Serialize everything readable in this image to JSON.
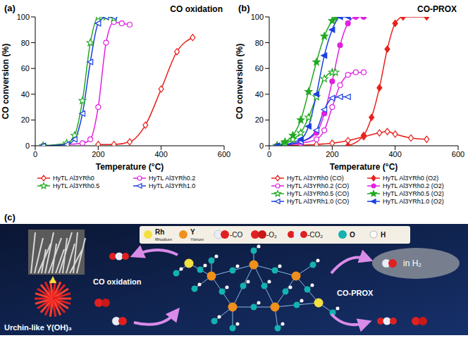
{
  "chart_data": [
    {
      "type": "line",
      "panel_label": "(a)",
      "title": "CO oxidation",
      "x_label": "Temperature (°C)",
      "y_label": "CO conversion (%)",
      "xlim": [
        0,
        600
      ],
      "xticks": [
        0,
        200,
        400,
        600
      ],
      "ylim": [
        0,
        100
      ],
      "yticks": [
        0,
        20,
        40,
        60,
        80,
        100
      ],
      "grid": false,
      "legend": "bottom",
      "series": [
        {
          "name": "HyTL Al3YRh0",
          "color": "#e8201c",
          "marker": "open_diamond",
          "x": [
            200,
            250,
            300,
            350,
            400,
            450,
            500
          ],
          "values": [
            1,
            1,
            3,
            16,
            44,
            73,
            84
          ]
        },
        {
          "name": "HyTL Al3YRh0.2",
          "color": "#e020e0",
          "marker": "open_circle",
          "x": [
            25,
            100,
            150,
            175,
            200,
            225,
            250,
            275,
            300
          ],
          "values": [
            0,
            1,
            2,
            5,
            30,
            80,
            96,
            95,
            94
          ]
        },
        {
          "name": "HyTL Al3YRh0.5",
          "color": "#22a822",
          "marker": "open_star",
          "x": [
            25,
            100,
            125,
            150,
            175,
            200,
            225,
            250
          ],
          "values": [
            0,
            2,
            8,
            35,
            80,
            100,
            100,
            99
          ]
        },
        {
          "name": "HyTL Al3YRh1.0",
          "color": "#1a3fe0",
          "marker": "open_triangle_left",
          "x": [
            25,
            100,
            125,
            150,
            175,
            200,
            225,
            250
          ],
          "values": [
            0,
            1,
            5,
            25,
            65,
            95,
            100,
            100
          ]
        }
      ]
    },
    {
      "type": "line",
      "panel_label": "(b)",
      "title": "CO-PROX",
      "x_label": "Temperature (°C)",
      "y_label": "CO conversion (%)",
      "xlim": [
        0,
        600
      ],
      "xticks": [
        0,
        200,
        400,
        600
      ],
      "ylim": [
        0,
        100
      ],
      "yticks": [
        0,
        20,
        40,
        60,
        80,
        100
      ],
      "grid": false,
      "legend": "bottom",
      "series": [
        {
          "name": "HyTL Al3YRh0 (CO)",
          "color": "#e8201c",
          "marker": "open_diamond",
          "x": [
            25,
            100,
            150,
            200,
            250,
            300,
            350,
            375,
            400,
            450,
            500
          ],
          "values": [
            0,
            0.5,
            1,
            2,
            4,
            7,
            10,
            11,
            9,
            6,
            5
          ]
        },
        {
          "name": "HyTL Al3YRh0 (O2)",
          "color": "#e8201c",
          "marker": "diamond",
          "x": [
            250,
            300,
            325,
            350,
            375,
            400,
            425,
            500
          ],
          "values": [
            0,
            8,
            22,
            45,
            75,
            95,
            100,
            100
          ]
        },
        {
          "name": "HyTL Al3YRh0.2 (CO)",
          "color": "#e020e0",
          "marker": "open_circle",
          "x": [
            25,
            100,
            150,
            175,
            200,
            225,
            250,
            275,
            300
          ],
          "values": [
            0,
            2,
            5,
            12,
            30,
            47,
            55,
            57,
            57
          ]
        },
        {
          "name": "HyTL Al3YRh0.2 (O2)",
          "color": "#e020e0",
          "marker": "circle",
          "x": [
            25,
            100,
            150,
            175,
            200,
            225,
            250,
            275,
            300
          ],
          "values": [
            0,
            3,
            10,
            25,
            50,
            78,
            95,
            100,
            100
          ]
        },
        {
          "name": "HyTL Al3YRh0.5 (CO)",
          "color": "#22a822",
          "marker": "open_star",
          "x": [
            25,
            50,
            75,
            100,
            125,
            150,
            175,
            200,
            210
          ],
          "values": [
            0,
            2,
            5,
            10,
            22,
            38,
            52,
            57,
            57
          ]
        },
        {
          "name": "HyTL Al3YRh0.5 (O2)",
          "color": "#22a822",
          "marker": "star",
          "x": [
            25,
            50,
            75,
            100,
            125,
            150,
            175,
            200,
            210
          ],
          "values": [
            0,
            3,
            8,
            20,
            42,
            65,
            85,
            97,
            100
          ]
        },
        {
          "name": "HyTL Al3YRh1.0 (CO)",
          "color": "#1a3fe0",
          "marker": "open_triangle_left",
          "x": [
            25,
            100,
            150,
            175,
            200,
            225,
            250
          ],
          "values": [
            0,
            3,
            12,
            28,
            37,
            38,
            38
          ]
        },
        {
          "name": "HyTL Al3YRh1.0 (O2)",
          "color": "#1a3fe0",
          "marker": "triangle_left",
          "x": [
            25,
            100,
            125,
            150,
            175,
            200,
            225,
            250
          ],
          "values": [
            0,
            5,
            15,
            40,
            70,
            90,
            100,
            100
          ]
        }
      ]
    }
  ],
  "diagram": {
    "panel_label": "(c)",
    "legend": [
      {
        "symbol": "Rh",
        "label": "Rhodium"
      },
      {
        "symbol": "Y",
        "label": "Yttrium"
      },
      {
        "label": "-CO"
      },
      {
        "label": "-O₂"
      },
      {
        "label": "-CO₂"
      },
      {
        "symbol": "O"
      },
      {
        "symbol": "H"
      }
    ],
    "left_label": "Urchin-like Y(OH)₃",
    "arrow_left": "CO oxidation",
    "arrow_right": "CO-PROX",
    "cloud": "in H₂"
  }
}
